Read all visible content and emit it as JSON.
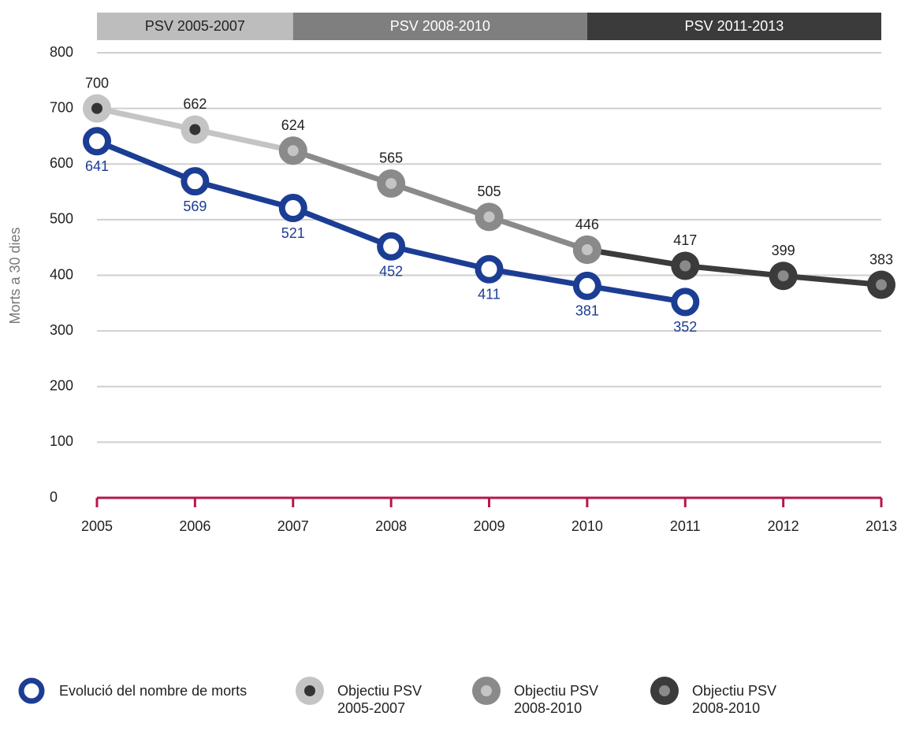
{
  "chart_data": {
    "type": "line",
    "y_label": "Morts a 30 dies",
    "periods": [
      {
        "label": "PSV 2005-2007",
        "color": "#bdbdbd",
        "text_color": "#222222"
      },
      {
        "label": "PSV 2008-2010",
        "color": "#7f7f7f",
        "text_color": "#ffffff"
      },
      {
        "label": "PSV 2011-2013",
        "color": "#3b3b3b",
        "text_color": "#ffffff"
      }
    ],
    "categories": [
      "2005",
      "2006",
      "2007",
      "2008",
      "2009",
      "2010",
      "2011",
      "2012",
      "2013"
    ],
    "series": [
      {
        "name": "Evolució del nombre de morts",
        "color": "#1c3d94",
        "inner_color": "#ffffff",
        "values": [
          641,
          569,
          521,
          452,
          411,
          381,
          352,
          null,
          null
        ]
      },
      {
        "name": "Objectiu PSV 2005-2007",
        "color": "#c4c4c4",
        "inner_color": "#333333",
        "values": [
          700,
          662,
          624,
          null,
          null,
          null,
          null,
          null,
          null
        ]
      },
      {
        "name": "Objectiu PSV 2008-2010",
        "color": "#8a8a8a",
        "inner_color": "#c4c4c4",
        "values": [
          null,
          null,
          624,
          565,
          505,
          446,
          null,
          null,
          null
        ]
      },
      {
        "name": "Objectiu PSV 2008-2010",
        "color": "#3b3b3b",
        "inner_color": "#8a8a8a",
        "values": [
          null,
          null,
          null,
          null,
          null,
          446,
          417,
          399,
          383
        ]
      }
    ],
    "ylim": [
      0,
      800
    ],
    "yticks": [
      0,
      100,
      200,
      300,
      400,
      500,
      600,
      700,
      800
    ],
    "grid": true,
    "axis_color": "#b5174a"
  }
}
